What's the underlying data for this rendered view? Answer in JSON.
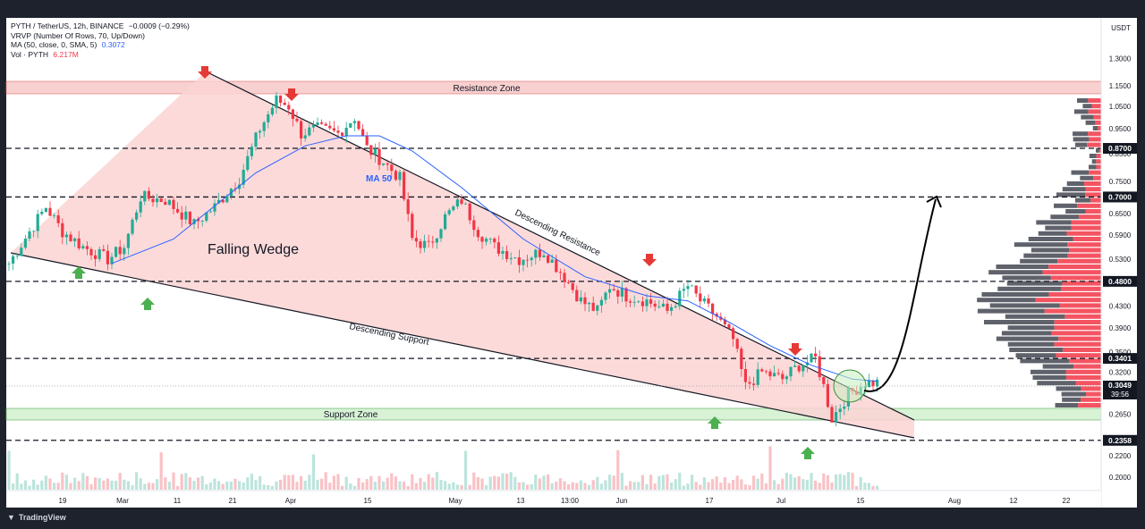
{
  "header": {
    "symbol_line": "PYTH / TetherUS, 12h, BINANCE",
    "symbol_change": "−0.0009 (−0.29%)",
    "vrvp_line": "VRVP (Number Of Rows, 70, Up/Down)",
    "ma_line": "MA (50, close, 0, SMA, 5)",
    "ma_value": "0.3072",
    "vol_line": "Vol · PYTH",
    "vol_value": "6.217M"
  },
  "price_axis": {
    "unit": "USDT",
    "ticks": [
      "1.3000",
      "1.1500",
      "1.0500",
      "0.9500",
      "0.8500",
      "0.7500",
      "0.6500",
      "0.5900",
      "0.5300",
      "0.4300",
      "0.3900",
      "0.3500",
      "0.3200",
      "0.2650",
      "0.2200",
      "0.2000"
    ],
    "badges": [
      {
        "label": "0.8700",
        "price": 0.87
      },
      {
        "label": "0.7000",
        "price": 0.7
      },
      {
        "label": "0.4800",
        "price": 0.48
      },
      {
        "label": "0.3401",
        "price": 0.3401
      },
      {
        "label": "0.2358",
        "price": 0.2358
      }
    ],
    "current": {
      "price_label": "0.3049",
      "timer": "39:56",
      "price": 0.3049
    }
  },
  "time_axis": {
    "ticks": [
      "19",
      "Mar",
      "11",
      "21",
      "Apr",
      "15",
      "May",
      "13",
      "13:00",
      "Jun",
      "17",
      "Jul",
      "15",
      "Aug",
      "12",
      "22"
    ]
  },
  "annotations": {
    "resistance_zone": "Resistance Zone",
    "support_zone": "Support Zone",
    "falling_wedge": "Falling Wedge",
    "descending_resistance": "Descending Resistance",
    "descending_support": "Descending Support",
    "ma_label": "MA 50"
  },
  "brand": {
    "name": "TradingView"
  },
  "colors": {
    "up": "#22ab94",
    "down": "#f23645",
    "ma": "#2962ff",
    "wedge_fill": "#fbd3d3",
    "resistance_zone": "#f8d0d0",
    "support_zone": "#d7f2d4",
    "arrow_red": "#e53935",
    "arrow_green": "#4caf50"
  },
  "chart_data": {
    "type": "candlestick",
    "title": "PYTH / TetherUS, 12h, BINANCE",
    "ylim": [
      0.19,
      1.35
    ],
    "y_scale": "log",
    "x_range": [
      "Feb 13",
      "Aug 27"
    ],
    "price_path": [
      [
        0,
        0.52
      ],
      [
        5,
        0.6
      ],
      [
        9,
        0.67
      ],
      [
        13,
        0.6
      ],
      [
        18,
        0.56
      ],
      [
        24,
        0.53
      ],
      [
        28,
        0.56
      ],
      [
        32,
        0.7
      ],
      [
        38,
        0.69
      ],
      [
        45,
        0.62
      ],
      [
        50,
        0.67
      ],
      [
        56,
        0.76
      ],
      [
        61,
        0.95
      ],
      [
        65,
        1.08
      ],
      [
        68,
        1.05
      ],
      [
        71,
        0.93
      ],
      [
        75,
        0.95
      ],
      [
        80,
        0.93
      ],
      [
        84,
        1.0
      ],
      [
        87,
        0.87
      ],
      [
        91,
        0.82
      ],
      [
        95,
        0.76
      ],
      [
        98,
        0.58
      ],
      [
        102,
        0.56
      ],
      [
        106,
        0.64
      ],
      [
        110,
        0.69
      ],
      [
        114,
        0.6
      ],
      [
        118,
        0.56
      ],
      [
        124,
        0.53
      ],
      [
        130,
        0.55
      ],
      [
        135,
        0.49
      ],
      [
        139,
        0.44
      ],
      [
        143,
        0.42
      ],
      [
        146,
        0.47
      ],
      [
        150,
        0.45
      ],
      [
        155,
        0.44
      ],
      [
        160,
        0.42
      ],
      [
        165,
        0.47
      ],
      [
        168,
        0.44
      ],
      [
        172,
        0.41
      ],
      [
        176,
        0.37
      ],
      [
        179,
        0.3
      ],
      [
        183,
        0.32
      ],
      [
        188,
        0.31
      ],
      [
        192,
        0.33
      ],
      [
        196,
        0.34
      ],
      [
        198,
        0.3
      ],
      [
        200,
        0.26
      ],
      [
        204,
        0.29
      ],
      [
        208,
        0.305
      ],
      [
        211,
        0.3049
      ]
    ],
    "ma50_path": [
      [
        25,
        0.52
      ],
      [
        40,
        0.58
      ],
      [
        60,
        0.78
      ],
      [
        72,
        0.88
      ],
      [
        82,
        0.92
      ],
      [
        90,
        0.92
      ],
      [
        98,
        0.86
      ],
      [
        110,
        0.73
      ],
      [
        125,
        0.58
      ],
      [
        140,
        0.49
      ],
      [
        155,
        0.45
      ],
      [
        165,
        0.44
      ],
      [
        175,
        0.4
      ],
      [
        185,
        0.36
      ],
      [
        195,
        0.33
      ],
      [
        205,
        0.31
      ],
      [
        211,
        0.3072
      ]
    ],
    "levels": [
      0.87,
      0.7,
      0.48,
      0.3401,
      0.2358
    ],
    "resistance_zone": [
      1.115,
      1.16
    ],
    "support_zone": [
      0.262,
      0.277
    ],
    "descending_resistance": [
      [
        52,
        1.22
      ],
      [
        211,
        0.3
      ],
      [
        226,
        0.26
      ]
    ],
    "descending_support": [
      [
        0,
        0.55
      ],
      [
        200,
        0.265
      ],
      [
        226,
        0.24
      ]
    ],
    "projection": [
      [
        211,
        0.305
      ],
      [
        230,
        0.45
      ],
      [
        236,
        0.7
      ]
    ],
    "sell_arrows": [
      [
        52,
        1.22
      ],
      [
        72,
        1.06
      ],
      [
        161,
        0.5
      ],
      [
        195,
        0.36
      ]
    ],
    "buy_arrows": [
      [
        18,
        0.49
      ],
      [
        35,
        0.44
      ],
      [
        174,
        0.255
      ],
      [
        197,
        0.225
      ]
    ],
    "vrvp": {
      "rows": 70,
      "method": "Up/Down"
    }
  }
}
